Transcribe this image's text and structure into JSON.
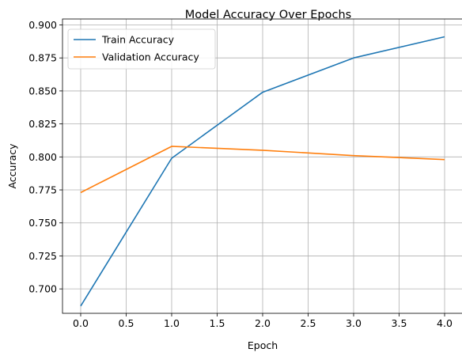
{
  "chart_data": {
    "type": "line",
    "title": "Model Accuracy Over Epochs",
    "xlabel": "Epoch",
    "ylabel": "Accuracy",
    "x": [
      0,
      1,
      2,
      3,
      4
    ],
    "series": [
      {
        "name": "Train Accuracy",
        "color": "#1f77b4",
        "values": [
          0.687,
          0.799,
          0.849,
          0.875,
          0.891
        ]
      },
      {
        "name": "Validation Accuracy",
        "color": "#ff7f0e",
        "values": [
          0.773,
          0.808,
          0.805,
          0.801,
          0.798
        ]
      }
    ],
    "xlim": [
      -0.2,
      4.2
    ],
    "ylim": [
      0.6815,
      0.9045
    ],
    "xticks": [
      "0.0",
      "0.5",
      "1.0",
      "1.5",
      "2.0",
      "2.5",
      "3.0",
      "3.5",
      "4.0"
    ],
    "yticks": [
      "0.700",
      "0.725",
      "0.750",
      "0.775",
      "0.800",
      "0.825",
      "0.850",
      "0.875",
      "0.900"
    ],
    "grid": true,
    "legend": "upper left"
  }
}
